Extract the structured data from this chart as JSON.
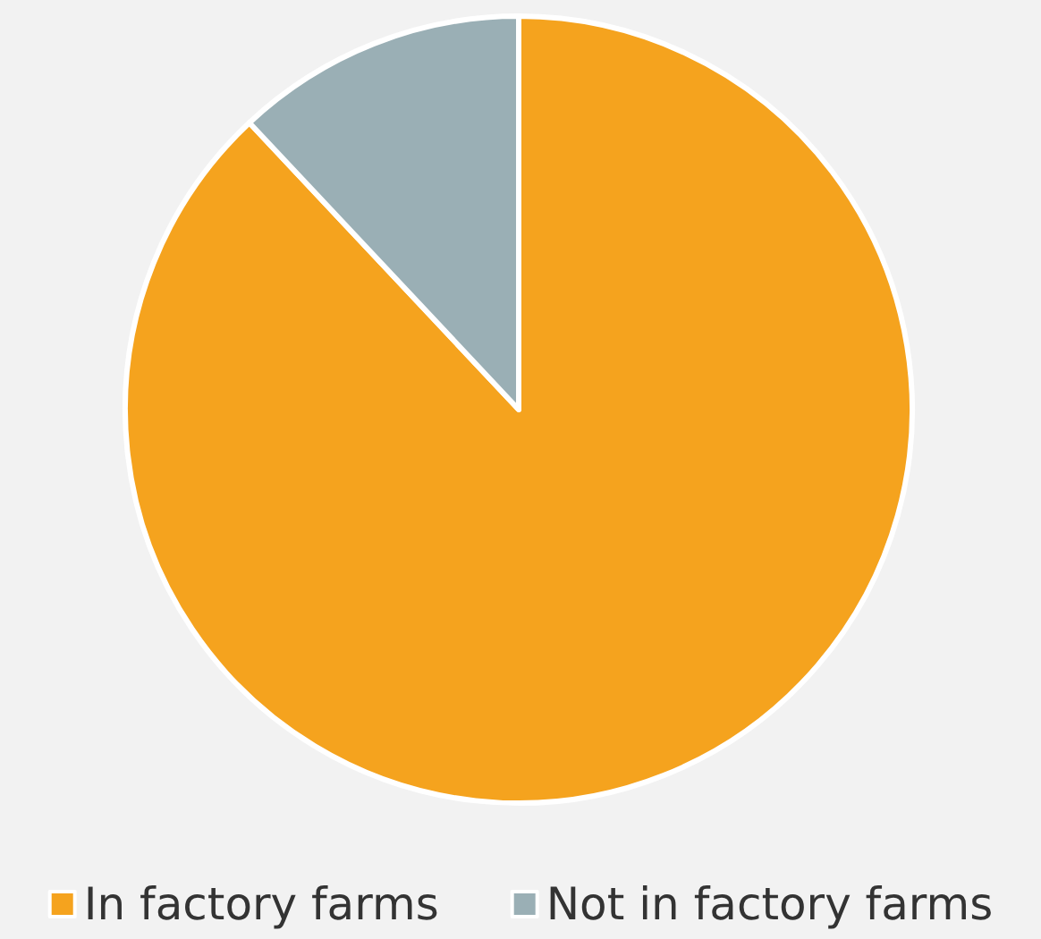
{
  "chart_data": {
    "type": "pie",
    "categories": [
      "In factory farms",
      "Not in factory farms"
    ],
    "values": [
      88,
      12
    ],
    "colors": [
      "#f5a31e",
      "#9aafb5"
    ],
    "legend": "bottom"
  }
}
